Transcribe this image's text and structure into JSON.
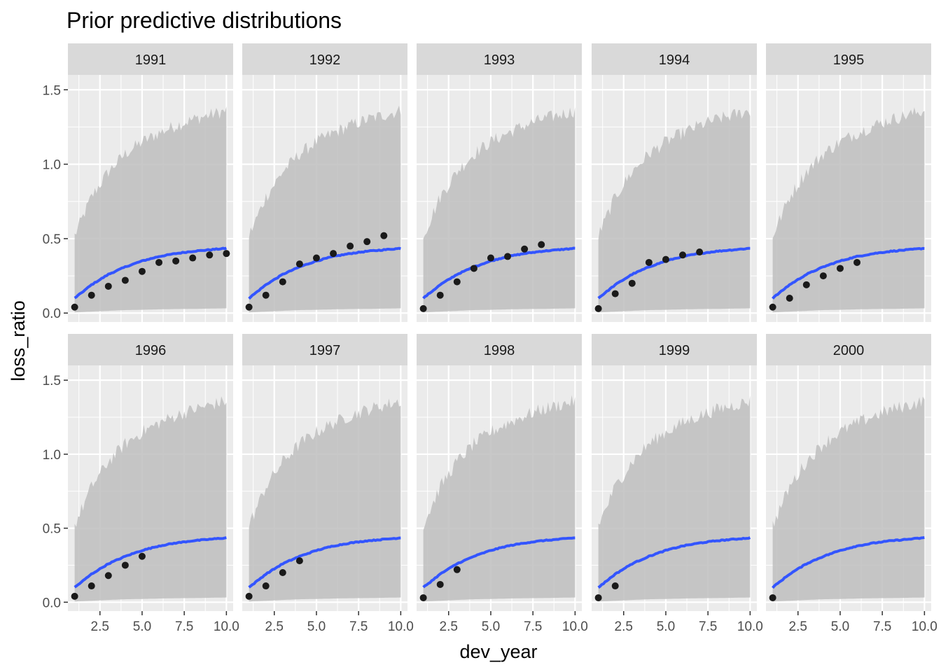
{
  "chart_data": {
    "type": "line",
    "title": "Prior predictive distributions",
    "xlabel": "dev_year",
    "ylabel": "loss_ratio",
    "xlim": [
      0.6,
      10.4
    ],
    "ylim": [
      -0.06,
      1.6
    ],
    "x_ticks": [
      2.5,
      5.0,
      7.5,
      10.0
    ],
    "x_tick_labels": [
      "2.5",
      "5.0",
      "7.5",
      "10.0"
    ],
    "y_ticks": [
      0.0,
      0.5,
      1.0,
      1.5
    ],
    "y_tick_labels": [
      "0.0",
      "0.5",
      "1.0",
      "1.5"
    ],
    "grid": true,
    "facet_layout": "2 rows x 5 columns",
    "colors": {
      "panel_background": "#ebebeb",
      "grid": "#ffffff",
      "strip_background": "#d9d9d9",
      "ribbon": "#bebebe",
      "mean_line": "#3355ff",
      "points": "#1a1a1a"
    },
    "series": [
      {
        "name": "prior predictive mean",
        "x": [
          1,
          2,
          3,
          4,
          5,
          6,
          7,
          8,
          9,
          10
        ],
        "values": [
          0.1,
          0.19,
          0.26,
          0.31,
          0.35,
          0.38,
          0.4,
          0.415,
          0.425,
          0.435
        ]
      },
      {
        "name": "prior predictive upper band",
        "x": [
          1,
          2,
          3,
          4,
          5,
          6,
          7,
          8,
          9,
          10
        ],
        "values": [
          0.52,
          0.78,
          0.95,
          1.07,
          1.15,
          1.21,
          1.26,
          1.3,
          1.33,
          1.36
        ]
      },
      {
        "name": "prior predictive lower band",
        "x": [
          1,
          2,
          3,
          4,
          5,
          6,
          7,
          8,
          9,
          10
        ],
        "values": [
          0.005,
          0.01,
          0.015,
          0.02,
          0.022,
          0.025,
          0.027,
          0.028,
          0.03,
          0.032
        ]
      }
    ],
    "panels": [
      {
        "label": "1991",
        "observed": {
          "x": [
            1,
            2,
            3,
            4,
            5,
            6,
            7,
            8,
            9,
            10
          ],
          "y": [
            0.04,
            0.12,
            0.18,
            0.22,
            0.28,
            0.34,
            0.35,
            0.37,
            0.39,
            0.4
          ]
        }
      },
      {
        "label": "1992",
        "observed": {
          "x": [
            1,
            2,
            3,
            4,
            5,
            6,
            7,
            8,
            9
          ],
          "y": [
            0.04,
            0.12,
            0.21,
            0.33,
            0.37,
            0.4,
            0.45,
            0.48,
            0.52
          ]
        }
      },
      {
        "label": "1993",
        "observed": {
          "x": [
            1,
            2,
            3,
            4,
            5,
            6,
            7,
            8
          ],
          "y": [
            0.03,
            0.12,
            0.21,
            0.3,
            0.37,
            0.38,
            0.43,
            0.46
          ]
        }
      },
      {
        "label": "1994",
        "observed": {
          "x": [
            1,
            2,
            3,
            4,
            5,
            6,
            7
          ],
          "y": [
            0.03,
            0.13,
            0.2,
            0.34,
            0.36,
            0.39,
            0.41
          ]
        }
      },
      {
        "label": "1995",
        "observed": {
          "x": [
            1,
            2,
            3,
            4,
            5,
            6
          ],
          "y": [
            0.04,
            0.1,
            0.19,
            0.25,
            0.3,
            0.34
          ]
        }
      },
      {
        "label": "1996",
        "observed": {
          "x": [
            1,
            2,
            3,
            4,
            5
          ],
          "y": [
            0.04,
            0.11,
            0.18,
            0.25,
            0.31
          ]
        }
      },
      {
        "label": "1997",
        "observed": {
          "x": [
            1,
            2,
            3,
            4
          ],
          "y": [
            0.04,
            0.11,
            0.2,
            0.28
          ]
        }
      },
      {
        "label": "1998",
        "observed": {
          "x": [
            1,
            2,
            3
          ],
          "y": [
            0.03,
            0.12,
            0.22
          ]
        }
      },
      {
        "label": "1999",
        "observed": {
          "x": [
            1,
            2
          ],
          "y": [
            0.03,
            0.11
          ]
        }
      },
      {
        "label": "2000",
        "observed": {
          "x": [
            1
          ],
          "y": [
            0.03
          ]
        }
      }
    ]
  }
}
